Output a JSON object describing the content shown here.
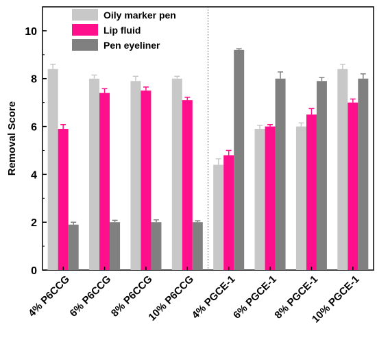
{
  "chart_data": {
    "type": "bar",
    "title": "",
    "xlabel": "",
    "ylabel": "Removal Score",
    "ylim": [
      0,
      11
    ],
    "yticks": [
      0,
      2,
      4,
      6,
      8,
      10
    ],
    "categories": [
      "4% P6CCG",
      "6% P6CCG",
      "8% P6CCG",
      "10% P6CCG",
      "4% PGCE-1",
      "6% PGCE-1",
      "8% PGCE-1",
      "10% PGCE-1"
    ],
    "series": [
      {
        "name": "Oily marker pen",
        "color": "#c8c8c8",
        "values": [
          8.4,
          8.0,
          7.9,
          8.0,
          4.4,
          5.9,
          6.0,
          8.4
        ],
        "errors": [
          0.2,
          0.15,
          0.2,
          0.1,
          0.25,
          0.15,
          0.15,
          0.2
        ]
      },
      {
        "name": "Lip fluid",
        "color": "#ff0f8c",
        "values": [
          5.9,
          7.4,
          7.5,
          7.1,
          4.8,
          6.0,
          6.5,
          7.0
        ],
        "errors": [
          0.18,
          0.18,
          0.15,
          0.12,
          0.2,
          0.08,
          0.25,
          0.15
        ]
      },
      {
        "name": "Pen eyeliner",
        "color": "#808080",
        "values": [
          1.9,
          2.0,
          2.0,
          2.0,
          9.2,
          8.0,
          7.9,
          8.0
        ],
        "errors": [
          0.1,
          0.08,
          0.1,
          0.06,
          0.05,
          0.28,
          0.15,
          0.2
        ]
      }
    ],
    "legend_position": "top-left",
    "group_divider_after_index": 3,
    "grid": false
  }
}
